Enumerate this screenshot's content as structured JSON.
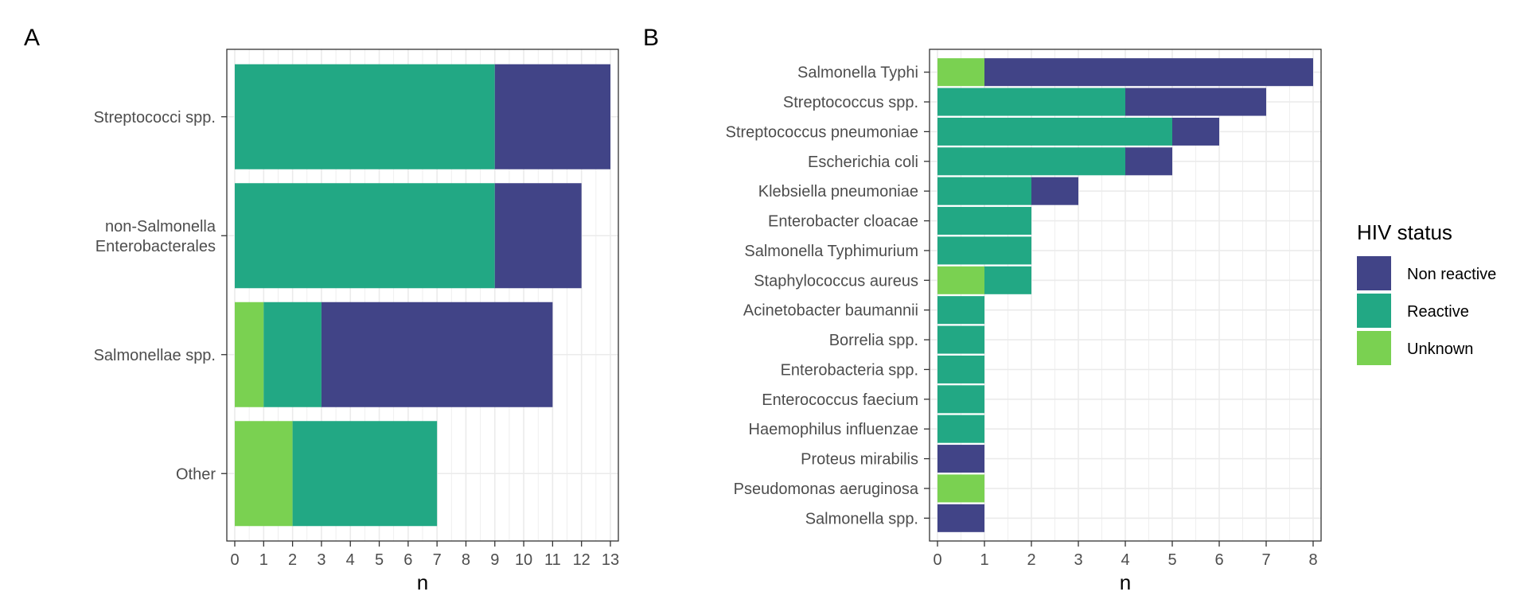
{
  "colors": {
    "Non reactive": "#414487",
    "Reactive": "#22A884",
    "Unknown": "#7AD151"
  },
  "legend": {
    "title": "HIV status",
    "items": [
      "Non reactive",
      "Reactive",
      "Unknown"
    ]
  },
  "chart_data": [
    {
      "panel": "A",
      "type": "bar",
      "orientation": "horizontal",
      "stacked": true,
      "xlabel": "n",
      "ylabel": "",
      "xlim": [
        0,
        13
      ],
      "xticks": [
        0,
        1,
        2,
        3,
        4,
        5,
        6,
        7,
        8,
        9,
        10,
        11,
        12,
        13
      ],
      "grid": true,
      "categories": [
        [
          "Streptococci spp."
        ],
        [
          "non-Salmonella",
          "Enterobacterales"
        ],
        [
          "Salmonellae spp."
        ],
        [
          "Other"
        ]
      ],
      "series": [
        {
          "name": "Unknown",
          "values": [
            0,
            0,
            1,
            2
          ]
        },
        {
          "name": "Reactive",
          "values": [
            9,
            9,
            2,
            5
          ]
        },
        {
          "name": "Non reactive",
          "values": [
            4,
            3,
            8,
            0
          ]
        }
      ]
    },
    {
      "panel": "B",
      "type": "bar",
      "orientation": "horizontal",
      "stacked": true,
      "xlabel": "n",
      "ylabel": "",
      "xlim": [
        0,
        8
      ],
      "xticks": [
        0,
        1,
        2,
        3,
        4,
        5,
        6,
        7,
        8
      ],
      "grid": true,
      "categories": [
        [
          "Salmonella Typhi"
        ],
        [
          "Streptococcus spp."
        ],
        [
          "Streptococcus pneumoniae"
        ],
        [
          "Escherichia coli"
        ],
        [
          "Klebsiella pneumoniae"
        ],
        [
          "Enterobacter cloacae"
        ],
        [
          "Salmonella Typhimurium"
        ],
        [
          "Staphylococcus aureus"
        ],
        [
          "Acinetobacter baumannii"
        ],
        [
          "Borrelia spp."
        ],
        [
          "Enterobacteria spp."
        ],
        [
          "Enterococcus faecium"
        ],
        [
          "Haemophilus influenzae"
        ],
        [
          "Proteus mirabilis"
        ],
        [
          "Pseudomonas aeruginosa"
        ],
        [
          "Salmonella spp."
        ]
      ],
      "series": [
        {
          "name": "Unknown",
          "values": [
            1,
            0,
            0,
            0,
            0,
            0,
            0,
            1,
            0,
            0,
            0,
            0,
            0,
            0,
            1,
            0
          ]
        },
        {
          "name": "Reactive",
          "values": [
            0,
            4,
            5,
            4,
            2,
            2,
            2,
            1,
            1,
            1,
            1,
            1,
            1,
            0,
            0,
            0
          ]
        },
        {
          "name": "Non reactive",
          "values": [
            7,
            3,
            1,
            1,
            1,
            0,
            0,
            0,
            0,
            0,
            0,
            0,
            0,
            1,
            0,
            1
          ]
        }
      ]
    }
  ]
}
